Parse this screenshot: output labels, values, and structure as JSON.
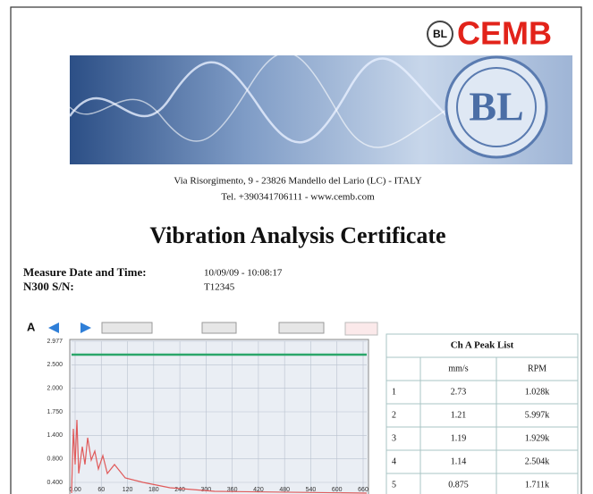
{
  "logo": {
    "text": "CEMB"
  },
  "address": {
    "line1": "Via Risorgimento, 9 - 23826 Mandello del Lario (LC) - ITALY",
    "line2": "Tel. +390341706111 - www.cemb.com"
  },
  "title": "Vibration Analysis Certificate",
  "measure": {
    "rows": [
      [
        "Measure Date and Time:",
        "10/09/09 - 10:08:17"
      ],
      [
        "N300 S/N:",
        "T12345"
      ]
    ]
  },
  "chart": {
    "channel": "A",
    "yticks": [
      "2.977",
      "2.500",
      "2.000",
      "1.750",
      "1.400",
      "0.800",
      "0.400"
    ],
    "xticks": [
      "0.00",
      "60",
      "120",
      "180",
      "240",
      "300",
      "360",
      "420",
      "480",
      "540",
      "600",
      "660"
    ]
  },
  "peak_table": {
    "title": "Ch A Peak List",
    "headers": [
      "mm/s",
      "RPM"
    ],
    "rows": [
      [
        "1",
        "2.73",
        "1.028k"
      ],
      [
        "2",
        "1.21",
        "5.997k"
      ],
      [
        "3",
        "1.19",
        "1.929k"
      ],
      [
        "4",
        "1.14",
        "2.504k"
      ],
      [
        "5",
        "0.875",
        "1.711k"
      ]
    ]
  }
}
